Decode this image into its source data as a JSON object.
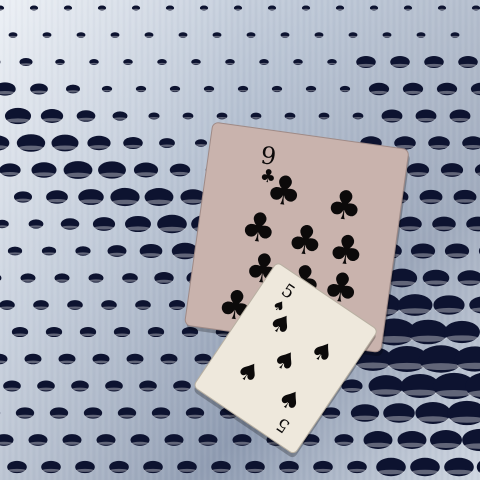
{
  "scene": {
    "background": {
      "description_icon": "perforated-metal-sheet",
      "colors": {
        "metal_light": "#d9dfe8",
        "metal_mid": "#a8b4c6",
        "metal_dark": "#6f7d96",
        "hole": "#0d1330"
      }
    },
    "cards": [
      {
        "rank": "9",
        "suit": "clubs",
        "suit_glyph": "♣",
        "colors": {
          "face": "#c9b3ad",
          "ink": "#0c0a0a"
        }
      },
      {
        "rank": "5",
        "suit": "spades",
        "suit_glyph": "♠",
        "colors": {
          "face": "#eee8dc",
          "ink": "#0c0a0a"
        }
      }
    ]
  }
}
